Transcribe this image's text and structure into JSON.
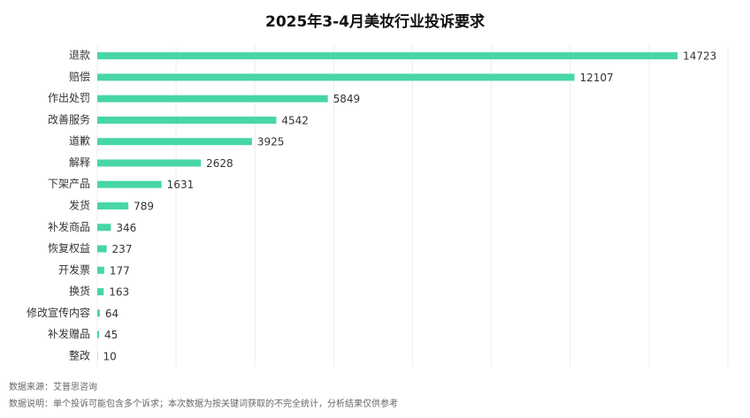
{
  "chart_data": {
    "type": "bar",
    "orientation": "horizontal",
    "title": "2025年3-4月美妆行业投诉要求",
    "categories": [
      "退款",
      "赔偿",
      "作出处罚",
      "改善服务",
      "道歉",
      "解释",
      "下架产品",
      "发货",
      "补发商品",
      "恢复权益",
      "开发票",
      "换货",
      "修改宣传内容",
      "补发赠品",
      "整改"
    ],
    "values": [
      14723,
      12107,
      5849,
      4542,
      3925,
      2628,
      1631,
      789,
      346,
      237,
      177,
      163,
      64,
      45,
      10
    ],
    "color": "#47d6a5",
    "xlim": [
      0,
      16000
    ],
    "xticks": [
      0,
      2000,
      4000,
      6000,
      8000,
      10000,
      12000,
      14000,
      16000
    ],
    "grid": true,
    "notes": [
      "数据来源：艾普思咨询",
      "数据说明：单个投诉可能包含多个诉求；本次数据为按关键词获取的不完全统计，分析结果仅供参考"
    ]
  }
}
